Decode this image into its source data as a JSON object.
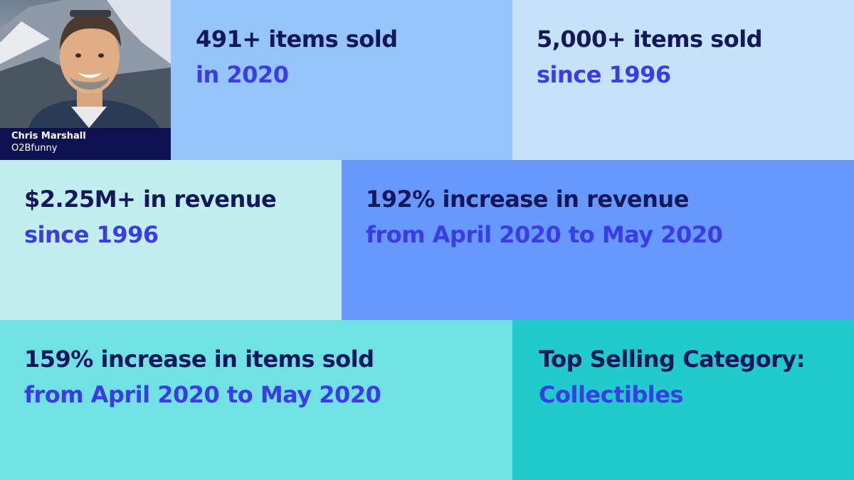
{
  "profile": {
    "name": "Chris Marshall",
    "username": "O2Bfunny"
  },
  "stats": [
    {
      "line1": "491+ items sold",
      "line2": "in 2020",
      "color": "#95c4fb"
    },
    {
      "line1": "5,000+ items sold",
      "line2": "since 1996",
      "color": "#c5e3f8"
    },
    {
      "line1": "$2.25M+ in revenue",
      "line2": "since 1996",
      "color": "#c1efee"
    },
    {
      "line1": "192% increase in revenue",
      "line2": "from April 2020 to May 2020",
      "color": "#6699fb"
    },
    {
      "line1": "159% increase in items sold",
      "line2": "from April 2020 to May 2020",
      "color": "#71e2e4"
    },
    {
      "line1": "Top Selling Category:",
      "line2": "Collectibles",
      "color": "#1fcbcb"
    }
  ],
  "colors": {
    "heading": "#14185a",
    "accent": "#3b3ce8",
    "caption_bg": "#0d1152"
  }
}
